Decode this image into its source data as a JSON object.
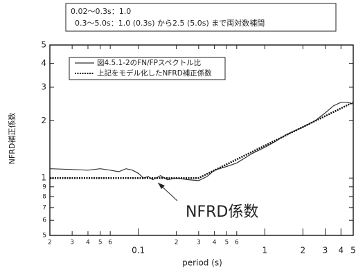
{
  "chart_data": {
    "type": "line",
    "notes": [
      "0.02～0.3s：1.0",
      "0.3～5.0s：1.0 (0.3s) から2.5 (5.0s) まで両対数補間"
    ],
    "annotation": "NFRD係数",
    "xlabel": "period (s)",
    "ylabel": "NFRD補正係数",
    "xscale": "log",
    "yscale": "log",
    "xlim": [
      0.02,
      5
    ],
    "ylim": [
      0.5,
      5
    ],
    "xticks": [
      {
        "value": 0.02,
        "label": "2"
      },
      {
        "value": 0.03,
        "label": "3"
      },
      {
        "value": 0.04,
        "label": "4"
      },
      {
        "value": 0.05,
        "label": "5"
      },
      {
        "value": 0.06,
        "label": "6"
      },
      0.1,
      {
        "value": 0.2,
        "label": "2"
      },
      {
        "value": 0.3,
        "label": "3"
      },
      {
        "value": 0.4,
        "label": "4"
      },
      {
        "value": 0.5,
        "label": "5"
      },
      {
        "value": 0.6,
        "label": "6"
      },
      1,
      2,
      3,
      4,
      5
    ],
    "yticks": [
      {
        "value": 0.5,
        "label": "5"
      },
      {
        "value": 0.6,
        "label": "6"
      },
      {
        "value": 0.7,
        "label": "7"
      },
      {
        "value": 0.8,
        "label": "8"
      },
      {
        "value": 0.9,
        "label": "9"
      },
      1,
      2,
      3,
      4,
      5
    ],
    "series": [
      {
        "name": "図4.5.1-2のFN/FPスペクトル比",
        "color": "#333333",
        "style": "solid",
        "x": [
          0.02,
          0.03,
          0.04,
          0.05,
          0.06,
          0.07,
          0.08,
          0.09,
          0.1,
          0.11,
          0.12,
          0.13,
          0.15,
          0.17,
          0.2,
          0.25,
          0.3,
          0.35,
          0.4,
          0.5,
          0.6,
          0.8,
          1.0,
          1.2,
          1.5,
          2,
          2.5,
          3,
          3.5,
          4,
          4.5,
          5
        ],
        "values": [
          1.12,
          1.11,
          1.1,
          1.12,
          1.1,
          1.08,
          1.12,
          1.1,
          1.06,
          1.0,
          1.02,
          0.98,
          1.03,
          0.98,
          1.0,
          0.98,
          0.97,
          1.02,
          1.1,
          1.15,
          1.2,
          1.35,
          1.45,
          1.55,
          1.7,
          1.85,
          2.0,
          2.2,
          2.4,
          2.5,
          2.5,
          2.45
        ]
      },
      {
        "name": "上記をモデル化したNFRD補正係数",
        "color": "#111111",
        "style": "dotted",
        "x": [
          0.02,
          0.3,
          5
        ],
        "values": [
          1.0,
          1.0,
          2.5
        ]
      }
    ]
  }
}
